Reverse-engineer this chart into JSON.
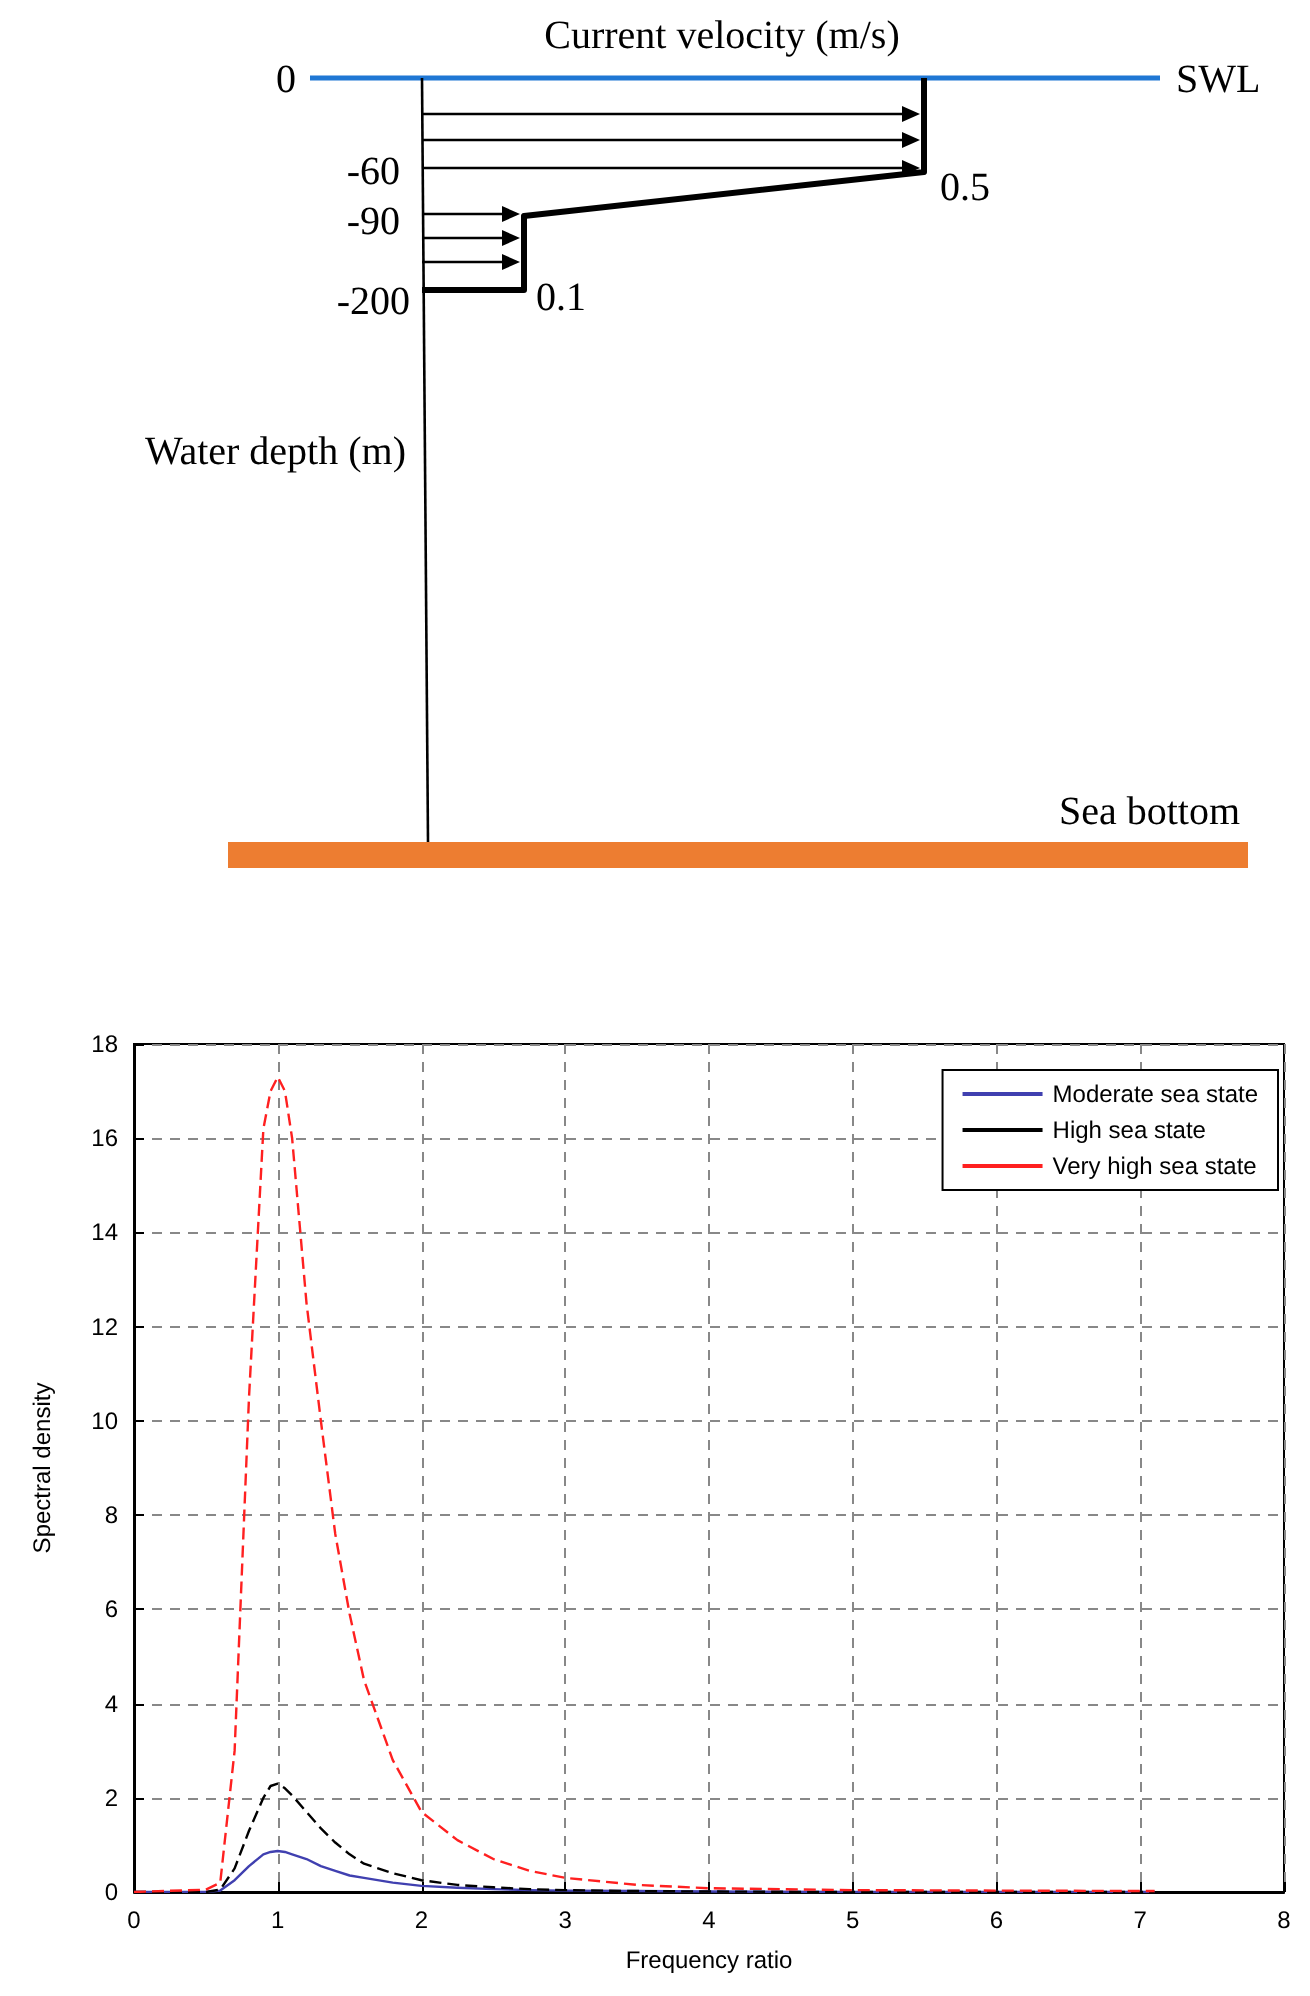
{
  "chart_data": [
    {
      "type": "other",
      "xlabel": "Current velocity (m/s)",
      "ylabel": "Water depth (m)",
      "annotations": [
        "0",
        "-60",
        "-90",
        "-200",
        "0.5",
        "0.1",
        "SWL",
        "Sea bottom"
      ]
    },
    {
      "type": "line",
      "xlabel": "Frequency ratio",
      "ylabel": "Spectral density",
      "xlim": [
        0,
        8
      ],
      "ylim": [
        0,
        18
      ],
      "xticks": [
        0,
        1,
        2,
        3,
        4,
        5,
        6,
        7,
        8
      ],
      "yticks": [
        0,
        2,
        4,
        6,
        8,
        10,
        12,
        14,
        16,
        18
      ],
      "grid": true,
      "legend": "top right",
      "x": [
        0,
        0.5,
        0.6,
        0.7,
        0.8,
        0.9,
        0.95,
        1.0,
        1.05,
        1.1,
        1.2,
        1.3,
        1.4,
        1.5,
        1.6,
        1.8,
        2.0,
        2.25,
        2.5,
        2.75,
        3.0,
        3.5,
        4.0,
        5.0,
        6.0,
        7.1
      ],
      "series": [
        {
          "name": "Moderate sea state",
          "color": "#4040b0",
          "line_style": "solid",
          "values": [
            0,
            0,
            0.03,
            0.25,
            0.55,
            0.8,
            0.85,
            0.87,
            0.85,
            0.8,
            0.7,
            0.55,
            0.45,
            0.35,
            0.3,
            0.2,
            0.13,
            0.09,
            0.06,
            0.04,
            0.03,
            0.02,
            0.01,
            0,
            0,
            0
          ]
        },
        {
          "name": "High sea state",
          "color": "#000000",
          "line_style": "dashed",
          "values": [
            0,
            0,
            0.05,
            0.5,
            1.3,
            2.0,
            2.25,
            2.3,
            2.2,
            2.05,
            1.7,
            1.35,
            1.05,
            0.8,
            0.6,
            0.4,
            0.25,
            0.15,
            0.1,
            0.06,
            0.04,
            0.02,
            0.01,
            0,
            0,
            0
          ]
        },
        {
          "name": "Very high sea state",
          "color": "#ff2020",
          "line_style": "dashed",
          "values": [
            0,
            0.05,
            0.2,
            3,
            10.5,
            16.2,
            17,
            17.3,
            17,
            16,
            12.5,
            10,
            7.6,
            5.9,
            4.5,
            2.8,
            1.7,
            1.1,
            0.7,
            0.45,
            0.3,
            0.15,
            0.08,
            0.04,
            0.03,
            0.02
          ]
        }
      ]
    }
  ]
}
